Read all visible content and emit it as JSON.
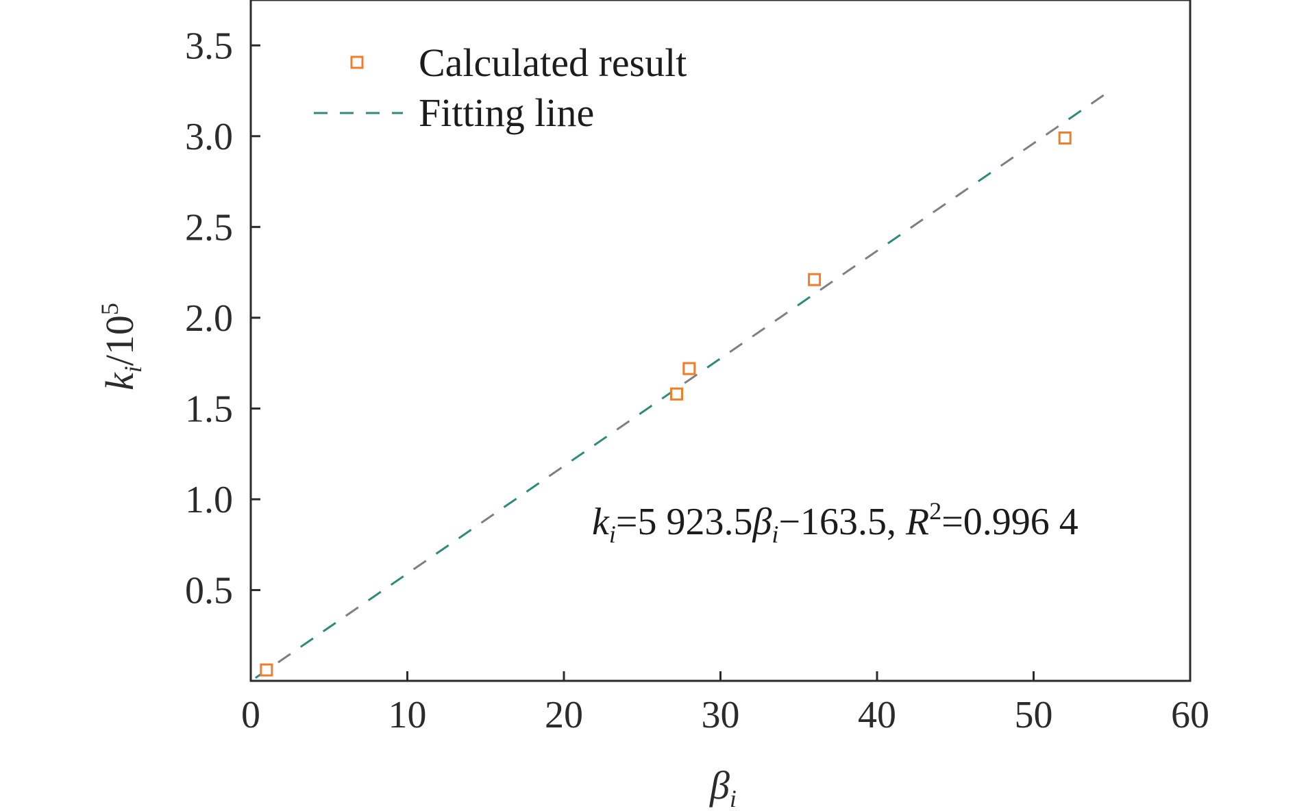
{
  "chart_data": {
    "type": "scatter",
    "xlabel": "β",
    "xlabel_sub": "i",
    "ylabel": "k",
    "ylabel_sub": "i",
    "ylabel_suffix": "/10",
    "ylabel_sup": "5",
    "xlim": [
      0,
      60
    ],
    "ylim": [
      0,
      3.75
    ],
    "x_ticks": [
      0,
      10,
      20,
      30,
      40,
      50,
      60
    ],
    "x_tick_labels": [
      "0",
      "10",
      "20",
      "30",
      "40",
      "50",
      "60"
    ],
    "y_ticks": [
      0.5,
      1.0,
      1.5,
      2.0,
      2.5,
      3.0,
      3.5
    ],
    "y_tick_labels": [
      "0.5",
      "1.0",
      "1.5",
      "2.0",
      "2.5",
      "3.0",
      "3.5"
    ],
    "grid": false,
    "legend_position": "top-left",
    "series": [
      {
        "name": "Calculated result",
        "kind": "scatter",
        "marker": "hollow-square",
        "color": "#F07D2A",
        "x": [
          1.0,
          27.2,
          28.0,
          36.0,
          52.0
        ],
        "y": [
          0.06,
          1.58,
          1.72,
          2.21,
          2.99
        ]
      },
      {
        "name": "Fitting line",
        "kind": "line",
        "style": "dashed",
        "colors": [
          "#2E8B7A",
          "#7F7F7F"
        ],
        "x": [
          0.3,
          54.8
        ],
        "y": [
          0.016,
          3.245
        ]
      }
    ],
    "annotation": {
      "k": "k",
      "k_sub": "i",
      "eq_part1": "=5 923.5",
      "beta": "β",
      "beta_sub": "i",
      "eq_part2": "−163.5, ",
      "R": "R",
      "R_sup": "2",
      "eq_part3": "=0.996 4"
    }
  }
}
